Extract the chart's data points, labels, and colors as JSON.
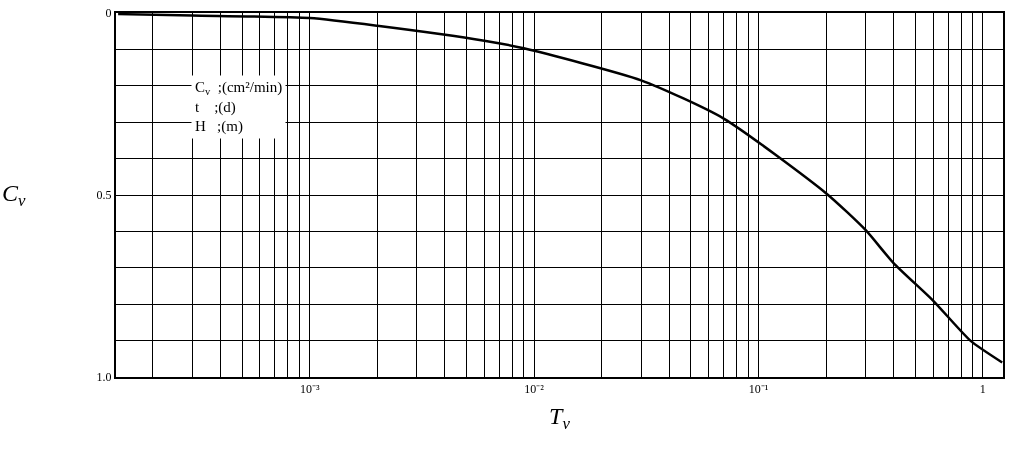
{
  "chart_data": {
    "type": "line",
    "xlabel": "T$_{v}$",
    "ylabel": "C$_{v}$",
    "annotations": [
      "C$_{v}$  ;(cm²/min)\nt    ;(d)\nH   ;(m)"
    ],
    "x": [
      0.00014,
      0.0003,
      0.001,
      0.002,
      0.006,
      0.009,
      0.03,
      0.07,
      0.2,
      0.3,
      0.4,
      0.6,
      0.88,
      1.22
    ],
    "series": [
      {
        "color": "#000000",
        "values": [
          0.003,
          0.007,
          0.014,
          0.035,
          0.076,
          0.097,
          0.185,
          0.29,
          0.495,
          0.596,
          0.687,
          0.79,
          0.9,
          0.96
        ]
      }
    ],
    "log": "x",
    "xlim": [
      0.000137,
      1.23
    ],
    "ylim": [
      1.0,
      0
    ],
    "xticks": [
      {
        "value": 0.0002,
        "label": null
      },
      {
        "value": 0.0003,
        "label": null
      },
      {
        "value": 0.0004,
        "label": null
      },
      {
        "value": 0.0005,
        "label": null
      },
      {
        "value": 0.0006,
        "label": null
      },
      {
        "value": 0.0007,
        "label": null
      },
      {
        "value": 0.0008,
        "label": null
      },
      {
        "value": 0.0009,
        "label": null
      },
      {
        "value": 0.001,
        "label": "10⁻³"
      },
      {
        "value": 0.002,
        "label": null
      },
      {
        "value": 0.003,
        "label": null
      },
      {
        "value": 0.004,
        "label": null
      },
      {
        "value": 0.005,
        "label": null
      },
      {
        "value": 0.006,
        "label": null
      },
      {
        "value": 0.007,
        "label": null
      },
      {
        "value": 0.008,
        "label": null
      },
      {
        "value": 0.009,
        "label": null
      },
      {
        "value": 0.01,
        "label": "10⁻²"
      },
      {
        "value": 0.02,
        "label": null
      },
      {
        "value": 0.03,
        "label": null
      },
      {
        "value": 0.04,
        "label": null
      },
      {
        "value": 0.05,
        "label": null
      },
      {
        "value": 0.06,
        "label": null
      },
      {
        "value": 0.07,
        "label": null
      },
      {
        "value": 0.08,
        "label": null
      },
      {
        "value": 0.09,
        "label": null
      },
      {
        "value": 0.1,
        "label": "10⁻¹"
      },
      {
        "value": 0.2,
        "label": null
      },
      {
        "value": 0.3,
        "label": null
      },
      {
        "value": 0.4,
        "label": null
      },
      {
        "value": 0.5,
        "label": null
      },
      {
        "value": 0.6,
        "label": null
      },
      {
        "value": 0.7,
        "label": null
      },
      {
        "value": 0.8,
        "label": null
      },
      {
        "value": 0.9,
        "label": null
      },
      {
        "value": 1,
        "label": "1"
      }
    ],
    "yticks": [
      0,
      {
        "value": 0.1,
        "label": null
      },
      {
        "value": 0.2,
        "label": null
      },
      {
        "value": 0.3,
        "label": null
      },
      {
        "value": 0.4,
        "label": null
      },
      {
        "value": 0.5,
        "label": "0.5"
      },
      {
        "value": 0.6,
        "label": null
      },
      {
        "value": 0.7,
        "label": null
      },
      {
        "value": 0.8,
        "label": null
      },
      {
        "value": 0.9,
        "label": null
      },
      {
        "value": 1.0,
        "label": "1.0"
      }
    ],
    "grid": true,
    "marker": "none",
    "line_style": "solid"
  }
}
